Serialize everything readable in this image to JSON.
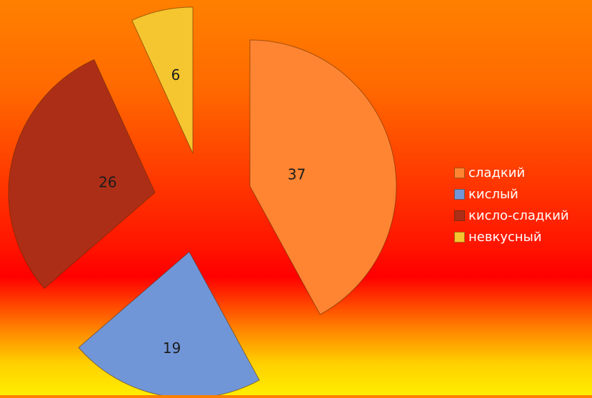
{
  "chart_data": {
    "type": "pie",
    "categories": [
      "сладкий",
      "кислый",
      "кисло-сладкий",
      "невкусный"
    ],
    "values": [
      37,
      19,
      26,
      6
    ],
    "data_labels": [
      "37",
      "19",
      "26",
      "6"
    ],
    "colors": [
      "#ff8533",
      "#7196d7",
      "#ad2e17",
      "#f5c62f"
    ],
    "start_angle_deg": 0,
    "direction": "clockwise",
    "exploded": true,
    "legend_position": "right"
  }
}
